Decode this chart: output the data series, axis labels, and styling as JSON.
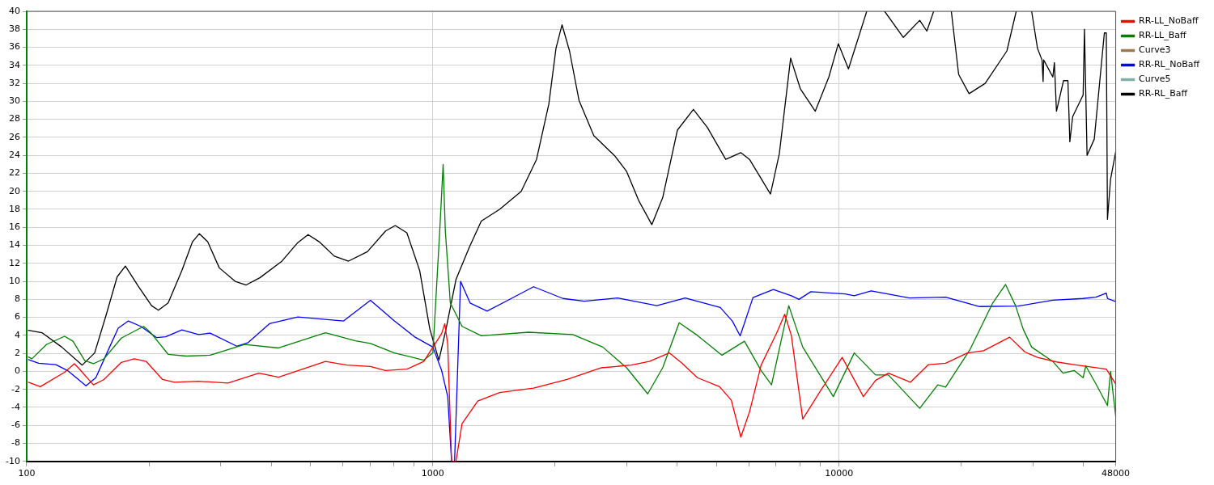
{
  "chart_data": {
    "type": "line",
    "log": "x",
    "xlim": [
      100,
      48000
    ],
    "xticks": [
      100,
      {
        "value": 200,
        "label": null
      },
      {
        "value": 300,
        "label": null
      },
      {
        "value": 400,
        "label": null
      },
      {
        "value": 500,
        "label": null
      },
      {
        "value": 600,
        "label": null
      },
      {
        "value": 700,
        "label": null
      },
      {
        "value": 800,
        "label": null
      },
      {
        "value": 900,
        "label": null
      },
      1000,
      {
        "value": 2000,
        "label": null
      },
      {
        "value": 3000,
        "label": null
      },
      {
        "value": 4000,
        "label": null
      },
      {
        "value": 5000,
        "label": null
      },
      {
        "value": 6000,
        "label": null
      },
      {
        "value": 7000,
        "label": null
      },
      {
        "value": 8000,
        "label": null
      },
      {
        "value": 9000,
        "label": null
      },
      10000,
      {
        "value": 20000,
        "label": null
      },
      {
        "value": 30000,
        "label": null
      },
      {
        "value": 40000,
        "label": null
      },
      48000
    ],
    "ylim": [
      -10,
      40
    ],
    "yticks": [
      -10,
      -8,
      -6,
      -4,
      -2,
      0,
      2,
      4,
      6,
      8,
      10,
      12,
      14,
      16,
      18,
      20,
      22,
      24,
      26,
      28,
      30,
      32,
      34,
      36,
      38,
      40
    ],
    "grid": true,
    "legend": "right",
    "marker": "none",
    "line_style": "solid",
    "series": [
      {
        "name": "RR-LL_NoBaff",
        "color": "#ff0000",
        "x": [
          101,
          108,
          124,
          131,
          134,
          146,
          155,
          171,
          184,
          197,
          216,
          231,
          265,
          313,
          373,
          417,
          544,
          614,
          702,
          764,
          863,
          950,
          1051,
          1070,
          1088,
          1112,
          1140,
          1180,
          1290,
          1460,
          1770,
          2140,
          2600,
          3080,
          3410,
          3820,
          4110,
          4480,
          5080,
          5430,
          5730,
          6020,
          6430,
          7010,
          7350,
          7630,
          8140,
          8990,
          10180,
          11480,
          12300,
          13230,
          15000,
          16600,
          18300,
          20700,
          22700,
          26300,
          28700,
          30800,
          34300,
          37900,
          45500,
          48000
        ],
        "values": [
          -1.2,
          -1.7,
          -0.1,
          0.85,
          0.4,
          -1.5,
          -0.9,
          1.0,
          1.4,
          1.1,
          -0.9,
          -1.2,
          -1.1,
          -1.3,
          -0.2,
          -0.65,
          1.1,
          0.7,
          0.55,
          0.1,
          0.25,
          1.1,
          4.2,
          5.3,
          3.0,
          -10,
          -10,
          -5.8,
          -3.3,
          -2.35,
          -1.85,
          -0.9,
          0.4,
          0.7,
          1.1,
          2.05,
          0.9,
          -0.7,
          -1.7,
          -3.2,
          -7.3,
          -4.5,
          0.7,
          4.2,
          6.35,
          4.0,
          -5.3,
          -2.2,
          1.55,
          -2.8,
          -1.0,
          -0.2,
          -1.2,
          0.75,
          0.9,
          2.05,
          2.3,
          3.8,
          2.15,
          1.55,
          1.05,
          0.75,
          0.25,
          -1.4
        ]
      },
      {
        "name": "RR-LL_Baff",
        "color": "#008000",
        "x": [
          101,
          103,
          112,
          124,
          130,
          139,
          146,
          155,
          171,
          194,
          202,
          223,
          247,
          283,
          344,
          417,
          544,
          645,
          702,
          804,
          950,
          1000,
          1040,
          1060,
          1073,
          1104,
          1180,
          1316,
          1720,
          2210,
          2620,
          3000,
          3380,
          3680,
          4040,
          4480,
          5150,
          5850,
          6430,
          6820,
          7520,
          8140,
          9680,
          10900,
          12300,
          13230,
          15800,
          17500,
          18300,
          21000,
          23900,
          25700,
          27200,
          28400,
          29800,
          33600,
          35600,
          37900,
          39900,
          40500,
          42900,
          45800,
          46600,
          48000
        ],
        "values": [
          1.6,
          1.4,
          3.0,
          3.9,
          3.35,
          1.2,
          0.85,
          1.4,
          3.7,
          5.0,
          4.3,
          1.9,
          1.7,
          1.8,
          3.0,
          2.6,
          4.3,
          3.4,
          3.1,
          2.05,
          1.25,
          2.05,
          15.7,
          23.0,
          15.7,
          7.6,
          5.0,
          3.95,
          4.35,
          4.1,
          2.7,
          0.4,
          -2.5,
          0.4,
          5.4,
          4.0,
          1.8,
          3.35,
          0.1,
          -1.5,
          7.3,
          2.7,
          -2.8,
          2.05,
          -0.4,
          -0.4,
          -4.1,
          -1.5,
          -1.75,
          2.4,
          7.6,
          9.65,
          7.3,
          4.7,
          2.7,
          1.1,
          -0.2,
          0.1,
          -0.7,
          0.6,
          -1.4,
          -3.8,
          0.0,
          -5.0
        ]
      },
      {
        "name": "Curve3",
        "color": "#a0784f"
      },
      {
        "name": "RR-RL_NoBaff",
        "color": "#0000ff",
        "x": [
          101,
          107,
          118,
          126,
          140,
          148,
          160,
          168,
          178,
          191,
          209,
          220,
          241,
          265,
          283,
          329,
          351,
          396,
          465,
          603,
          702,
          804,
          901,
          1000,
          1051,
          1088,
          1112,
          1131,
          1150,
          1170,
          1235,
          1360,
          1530,
          1770,
          2090,
          2360,
          2850,
          3560,
          4180,
          5100,
          5460,
          5710,
          6140,
          6890,
          7630,
          7970,
          8520,
          10350,
          10900,
          12000,
          14900,
          18300,
          22200,
          27600,
          33600,
          39900,
          42900,
          45500,
          45800,
          48000
        ],
        "values": [
          1.3,
          0.9,
          0.75,
          0.1,
          -1.6,
          -0.7,
          2.7,
          4.8,
          5.6,
          5.0,
          3.75,
          3.85,
          4.6,
          4.1,
          4.25,
          2.8,
          3.2,
          5.3,
          6.05,
          5.6,
          7.9,
          5.6,
          3.85,
          2.7,
          0.1,
          -2.8,
          -10,
          -10,
          -0.2,
          10.0,
          7.6,
          6.7,
          7.9,
          9.4,
          8.1,
          7.8,
          8.15,
          7.3,
          8.15,
          7.1,
          5.6,
          3.95,
          8.2,
          9.1,
          8.4,
          8.0,
          8.85,
          8.6,
          8.4,
          8.95,
          8.15,
          8.25,
          7.2,
          7.25,
          7.9,
          8.1,
          8.25,
          8.7,
          8.1,
          7.75
        ]
      },
      {
        "name": "Curve5",
        "color": "#7fb0a8"
      },
      {
        "name": "RR-RL_Baff",
        "color": "#000000",
        "x": [
          101,
          109,
          122,
          137,
          147,
          157,
          167,
          175,
          188,
          203,
          211,
          223,
          241,
          256,
          266,
          279,
          298,
          326,
          347,
          375,
          424,
          465,
          493,
          525,
          572,
          620,
          690,
          765,
          808,
          863,
          928,
          983,
          1035,
          1077,
          1140,
          1230,
          1316,
          1460,
          1650,
          1800,
          1930,
          2010,
          2080,
          2170,
          2290,
          2490,
          2810,
          3000,
          3210,
          3460,
          3680,
          4000,
          4380,
          4740,
          5260,
          5730,
          6020,
          6780,
          7130,
          7600,
          8030,
          8740,
          9440,
          9960,
          10550,
          11700,
          12300,
          12950,
          14400,
          15800,
          16450,
          17100,
          18000,
          18900,
          19700,
          20900,
          22900,
          25900,
          27300,
          28500,
          29800,
          30800,
          31600,
          31800,
          31900,
          33600,
          33900,
          34300,
          35700,
          36600,
          37000,
          37600,
          39900,
          40200,
          40800,
          42500,
          45000,
          45500,
          45800,
          46600,
          48000
        ],
        "values": [
          4.56,
          4.3,
          2.7,
          0.7,
          2.05,
          6.3,
          10.5,
          11.7,
          9.5,
          7.3,
          6.8,
          7.6,
          11.2,
          14.4,
          15.3,
          14.4,
          11.5,
          10.0,
          9.6,
          10.4,
          12.2,
          14.3,
          15.2,
          14.4,
          12.8,
          12.25,
          13.3,
          15.6,
          16.2,
          15.4,
          11.2,
          4.7,
          1.24,
          4.66,
          10.2,
          13.8,
          16.7,
          18.0,
          20.0,
          23.55,
          29.7,
          35.9,
          38.5,
          35.6,
          30.1,
          26.2,
          23.9,
          22.2,
          19.0,
          16.3,
          19.3,
          26.8,
          29.1,
          27.1,
          23.55,
          24.3,
          23.55,
          19.7,
          24.2,
          34.8,
          31.4,
          28.9,
          32.7,
          36.4,
          33.6,
          40,
          null,
          40,
          37.1,
          39.0,
          37.8,
          40,
          null,
          40,
          33.0,
          30.85,
          32.0,
          35.6,
          40,
          null,
          40,
          35.9,
          34.6,
          32.2,
          34.6,
          32.7,
          34.3,
          28.9,
          32.3,
          32.3,
          25.5,
          28.3,
          30.7,
          38.0,
          24.0,
          25.8,
          37.6,
          37.6,
          16.9,
          21.3,
          24.4
        ]
      }
    ]
  }
}
